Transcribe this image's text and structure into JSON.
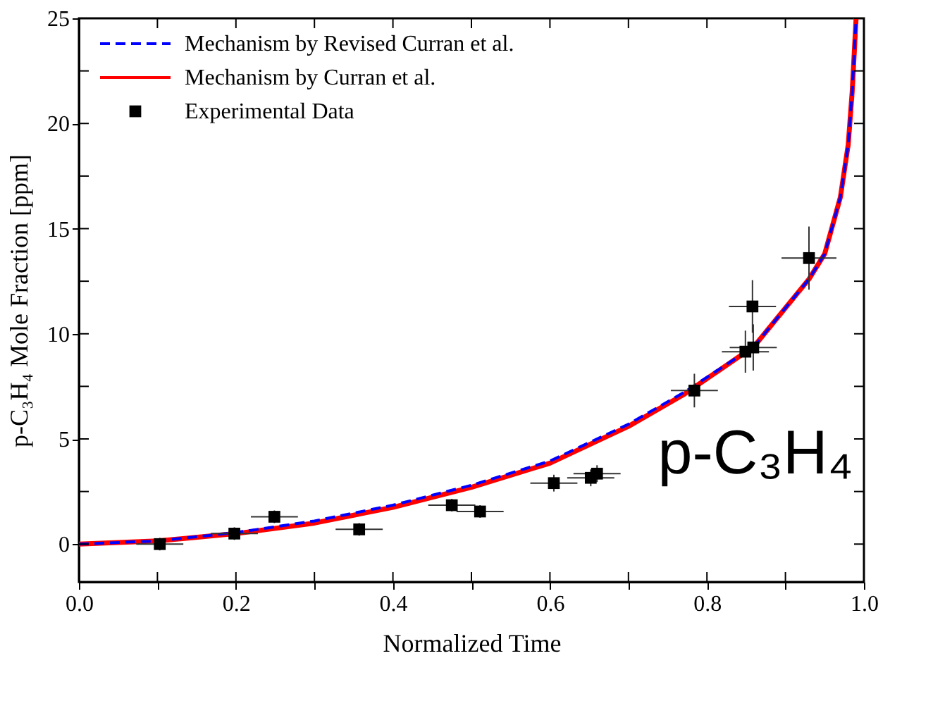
{
  "chart_data": {
    "type": "line",
    "xlabel": "Normalized Time",
    "ylabel": "p-C₃H₄ Mole Fraction [ppm]",
    "xlim": [
      0,
      1
    ],
    "ylim": [
      -1.8,
      25
    ],
    "xticks": [
      {
        "value": 0,
        "label": "0.0"
      },
      {
        "value": 0.1,
        "label": null
      },
      {
        "value": 0.2,
        "label": "0.2"
      },
      {
        "value": 0.3,
        "label": null
      },
      {
        "value": 0.4,
        "label": "0.4"
      },
      {
        "value": 0.5,
        "label": null
      },
      {
        "value": 0.6,
        "label": "0.6"
      },
      {
        "value": 0.7,
        "label": null
      },
      {
        "value": 0.8,
        "label": "0.8"
      },
      {
        "value": 0.9,
        "label": null
      },
      {
        "value": 1,
        "label": "1.0"
      }
    ],
    "yticks": [
      0,
      {
        "value": 2.5,
        "label": null
      },
      5,
      {
        "value": 7.5,
        "label": null
      },
      10,
      {
        "value": 12.5,
        "label": null
      },
      15,
      {
        "value": 17.5,
        "label": null
      },
      20,
      {
        "value": 22.5,
        "label": null
      },
      25
    ],
    "grid": false,
    "legend": "top left",
    "annotations": [
      "p-C₃H₄"
    ],
    "series": [
      {
        "name": "Mechanism by Revised Curran et al.",
        "color": "#0000ff",
        "line_style": "dashed",
        "x": [
          0,
          0.1,
          0.2,
          0.3,
          0.4,
          0.5,
          0.6,
          0.7,
          0.77,
          0.86,
          0.93,
          0.95,
          0.97,
          0.98,
          0.985,
          0.99
        ],
        "values": [
          0,
          0.15,
          0.55,
          1.1,
          1.85,
          2.8,
          3.95,
          5.7,
          7.2,
          9.4,
          12.6,
          13.8,
          16.5,
          19,
          21.5,
          25
        ]
      },
      {
        "name": "Mechanism by Curran et al.",
        "color": "#ff0000",
        "line_style": "solid",
        "x": [
          0,
          0.1,
          0.2,
          0.3,
          0.4,
          0.5,
          0.6,
          0.7,
          0.77,
          0.86,
          0.93,
          0.95,
          0.97,
          0.98,
          0.985,
          0.99
        ],
        "values": [
          0,
          0.15,
          0.5,
          1.0,
          1.75,
          2.7,
          3.85,
          5.6,
          7.1,
          9.4,
          12.6,
          13.8,
          16.5,
          19,
          21.5,
          25
        ]
      },
      {
        "name": "Experimental Data",
        "color": "#000000",
        "type": "scatter",
        "marker": "square",
        "x": [
          0.103,
          0.198,
          0.249,
          0.357,
          0.475,
          0.511,
          0.605,
          0.652,
          0.66,
          0.784,
          0.849,
          0.859,
          0.858,
          0.93
        ],
        "values": [
          0,
          0.5,
          1.3,
          0.7,
          1.85,
          1.55,
          2.9,
          3.15,
          3.35,
          7.3,
          9.15,
          9.35,
          11.3,
          13.6
        ],
        "errors": [
          0.3,
          0.3,
          0.3,
          0.3,
          0.3,
          0.3,
          0.4,
          0.4,
          0.4,
          0.8,
          1.0,
          1.1,
          1.25,
          1.5
        ],
        "xerrors": [
          0.03,
          0.03,
          0.03,
          0.03,
          0.03,
          0.03,
          0.03,
          0.03,
          0.03,
          0.03,
          0.03,
          0.03,
          0.03,
          0.035
        ]
      }
    ]
  }
}
